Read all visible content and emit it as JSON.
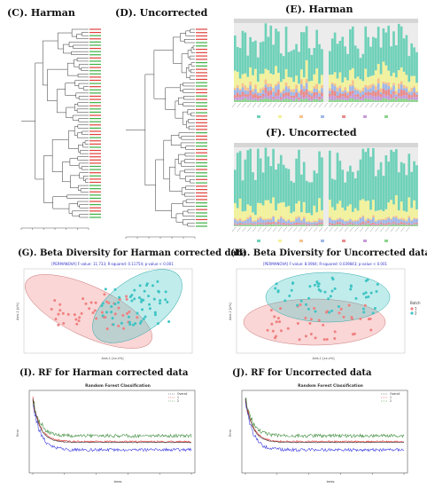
{
  "panels": {
    "C": {
      "label": "(C). Harman"
    },
    "D": {
      "label": "(D). Uncorrected"
    },
    "E": {
      "label": "(E). Harman"
    },
    "F": {
      "label": "(F). Uncorrected"
    },
    "G": {
      "label": "(G). Beta Diversity for Harman corrected data",
      "stat": "[PERMANOVA] F-value: 11.733; R-squared: 0.11754; p-value < 0.001",
      "xlabel": "Axis.1  [xx.x%]",
      "ylabel": "Axis.2  [x%]"
    },
    "H": {
      "label": "(H). Beta Diversity        for Uncorrected data",
      "stat": "[PERMANOVA] F-value: 8.0904; R-squared: 0.039843; p-value < 0.001",
      "xlabel": "Axis.1  [xx.x%]",
      "ylabel": "Axis.2  [x%]",
      "legend_title": "Batch",
      "legend_items": [
        "1",
        "2"
      ]
    },
    "I": {
      "label": "(I). RF for Harman corrected data",
      "title": "Random Forest Classification",
      "xlabel": "trees",
      "ylabel": "Error",
      "legend_items": [
        "Overall",
        "1",
        "2"
      ]
    },
    "J": {
      "label": "(J).  RF for Uncorrected data",
      "title": "Random Forest Classification",
      "xlabel": "trees",
      "ylabel": "Error",
      "legend_items": [
        "Overall",
        "1",
        "2"
      ]
    }
  },
  "colors": {
    "teal": "#3fc4c4",
    "salmon": "#f08080",
    "dendro_red": "#e0403a",
    "dendro_green": "#3cb043",
    "rf_overall": "#333333",
    "rf_1": "#e83030",
    "rf_2": "#3a8a3a",
    "rf_3": "#3a3ae0"
  },
  "chart_data": [
    {
      "type": "dendrogram",
      "panel": "C",
      "leaf_count": 60
    },
    {
      "type": "dendrogram",
      "panel": "D",
      "leaf_count": 60
    },
    {
      "type": "bar",
      "panel": "E",
      "stacked": true,
      "sample_count": 70,
      "series_colors": [
        "#6fd1b9",
        "#f2f29a",
        "#f6c18a",
        "#9fb7e8",
        "#e88a8a",
        "#c59bd9",
        "#8bd48b"
      ]
    },
    {
      "type": "bar",
      "panel": "F",
      "stacked": true,
      "sample_count": 70,
      "series_colors": [
        "#6fd1b9",
        "#f2f29a",
        "#f6c18a",
        "#9fb7e8",
        "#e88a8a",
        "#c59bd9",
        "#8bd48b"
      ]
    },
    {
      "type": "scatter",
      "panel": "G",
      "groups": [
        "1",
        "2"
      ]
    },
    {
      "type": "scatter",
      "panel": "H",
      "groups": [
        "1",
        "2"
      ]
    },
    {
      "type": "line",
      "panel": "I",
      "xlim": [
        0,
        5000
      ],
      "ylim": [
        0.09,
        0.25
      ]
    },
    {
      "type": "line",
      "panel": "J",
      "xlim": [
        0,
        5000
      ],
      "ylim": [
        0.09,
        0.25
      ]
    }
  ]
}
